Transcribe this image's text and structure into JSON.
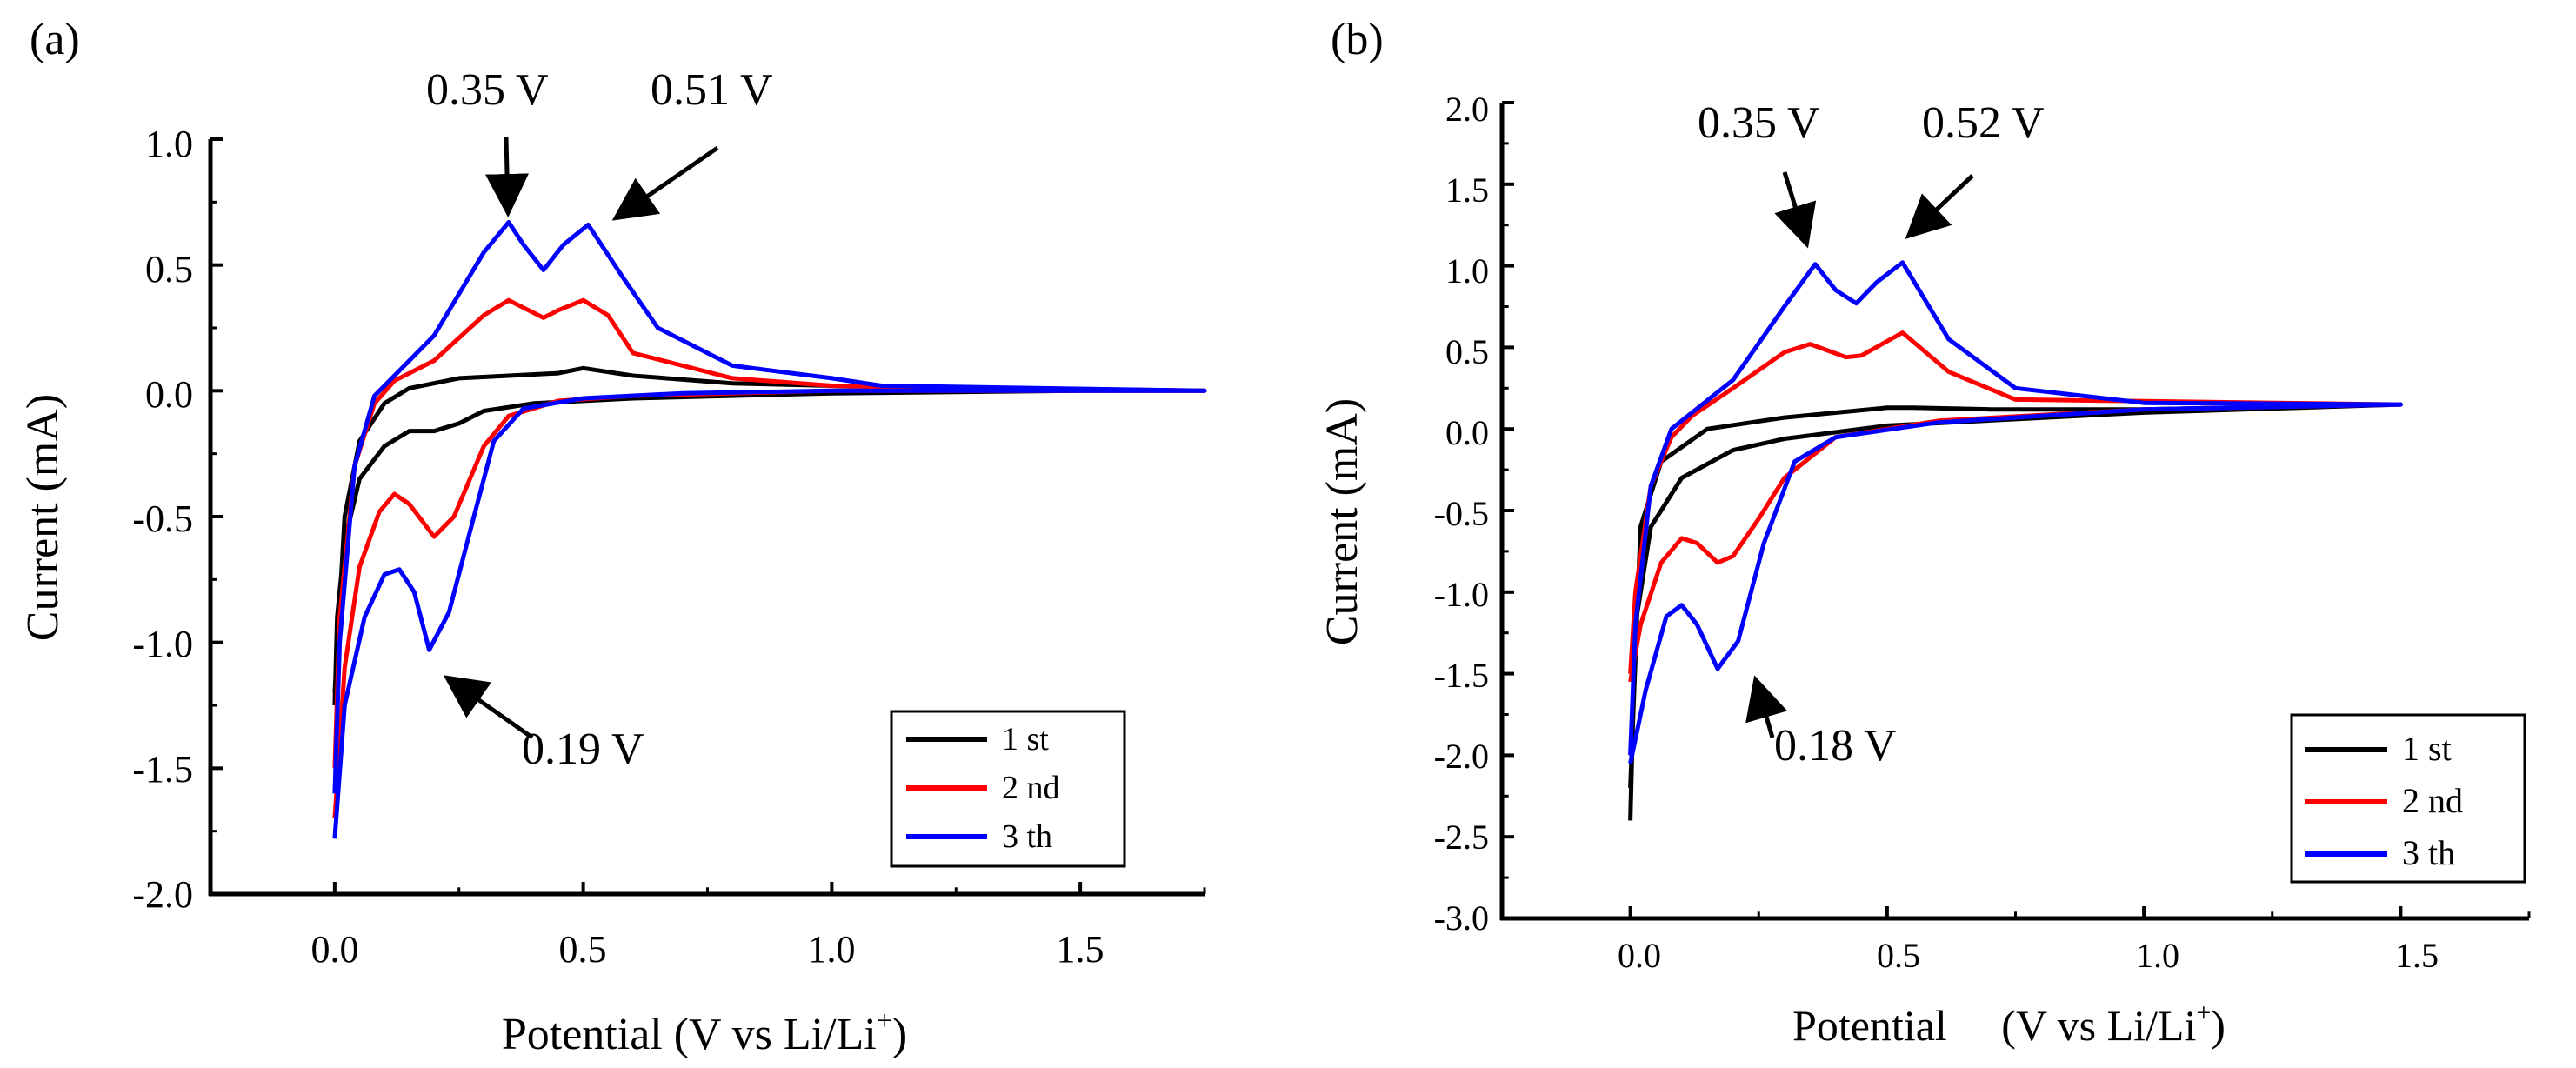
{
  "chart_data": [
    {
      "type": "line",
      "panel_label": "(a)",
      "xlabel": "Potential (V vs Li/Li",
      "xlabel_sup": "+",
      "xlabel_close": ")",
      "ylabel": "Current (mA)",
      "xlim": [
        -0.25,
        1.75
      ],
      "ylim": [
        -2.0,
        1.0
      ],
      "xticks": [
        0.0,
        0.5,
        1.0,
        1.5
      ],
      "xtick_labels": [
        "0.0",
        "0.5",
        "1.0",
        "1.5"
      ],
      "yticks": [
        -2.0,
        -1.5,
        -1.0,
        -0.5,
        0.0,
        0.5,
        1.0
      ],
      "ytick_labels": [
        "-2.0",
        "-1.5",
        "-1.0",
        "-0.5",
        "0.0",
        "0.5",
        "1.0"
      ],
      "legend_position": "bottom-right",
      "series": [
        {
          "name": "1 st",
          "color": "#000000",
          "points": [
            [
              0.0,
              -1.25
            ],
            [
              0.005,
              -0.9
            ],
            [
              0.02,
              -0.6
            ],
            [
              0.05,
              -0.35
            ],
            [
              0.1,
              -0.22
            ],
            [
              0.15,
              -0.16
            ],
            [
              0.2,
              -0.16
            ],
            [
              0.25,
              -0.13
            ],
            [
              0.3,
              -0.08
            ],
            [
              0.4,
              -0.05
            ],
            [
              0.6,
              -0.03
            ],
            [
              1.0,
              -0.01
            ],
            [
              1.5,
              0.0
            ],
            [
              1.75,
              0.0
            ],
            [
              1.5,
              0.0
            ],
            [
              1.0,
              0.02
            ],
            [
              0.8,
              0.03
            ],
            [
              0.6,
              0.06
            ],
            [
              0.5,
              0.09
            ],
            [
              0.45,
              0.07
            ],
            [
              0.35,
              0.06
            ],
            [
              0.25,
              0.05
            ],
            [
              0.15,
              0.01
            ],
            [
              0.1,
              -0.05
            ],
            [
              0.05,
              -0.2
            ],
            [
              0.02,
              -0.5
            ],
            [
              0.0,
              -1.2
            ]
          ]
        },
        {
          "name": "2 nd",
          "color": "#ff0000",
          "points": [
            [
              0.0,
              -1.7
            ],
            [
              0.02,
              -1.1
            ],
            [
              0.05,
              -0.7
            ],
            [
              0.09,
              -0.48
            ],
            [
              0.12,
              -0.41
            ],
            [
              0.15,
              -0.45
            ],
            [
              0.2,
              -0.58
            ],
            [
              0.24,
              -0.5
            ],
            [
              0.3,
              -0.22
            ],
            [
              0.35,
              -0.1
            ],
            [
              0.45,
              -0.04
            ],
            [
              0.6,
              -0.02
            ],
            [
              1.0,
              0.0
            ],
            [
              1.75,
              0.0
            ],
            [
              1.0,
              0.02
            ],
            [
              0.8,
              0.05
            ],
            [
              0.6,
              0.15
            ],
            [
              0.55,
              0.3
            ],
            [
              0.5,
              0.36
            ],
            [
              0.45,
              0.32
            ],
            [
              0.42,
              0.29
            ],
            [
              0.35,
              0.36
            ],
            [
              0.3,
              0.3
            ],
            [
              0.2,
              0.12
            ],
            [
              0.12,
              0.04
            ],
            [
              0.08,
              -0.05
            ],
            [
              0.04,
              -0.3
            ],
            [
              0.01,
              -0.9
            ],
            [
              0.0,
              -1.5
            ]
          ]
        },
        {
          "name": "3 th",
          "color": "#0000ff",
          "points": [
            [
              0.0,
              -1.78
            ],
            [
              0.02,
              -1.25
            ],
            [
              0.06,
              -0.9
            ],
            [
              0.1,
              -0.73
            ],
            [
              0.13,
              -0.71
            ],
            [
              0.16,
              -0.8
            ],
            [
              0.19,
              -1.03
            ],
            [
              0.23,
              -0.88
            ],
            [
              0.28,
              -0.5
            ],
            [
              0.32,
              -0.2
            ],
            [
              0.38,
              -0.07
            ],
            [
              0.5,
              -0.03
            ],
            [
              0.7,
              -0.01
            ],
            [
              1.0,
              0.0
            ],
            [
              1.75,
              0.0
            ],
            [
              1.1,
              0.02
            ],
            [
              1.0,
              0.05
            ],
            [
              0.8,
              0.1
            ],
            [
              0.65,
              0.25
            ],
            [
              0.58,
              0.45
            ],
            [
              0.51,
              0.66
            ],
            [
              0.46,
              0.58
            ],
            [
              0.42,
              0.48
            ],
            [
              0.38,
              0.58
            ],
            [
              0.35,
              0.67
            ],
            [
              0.3,
              0.55
            ],
            [
              0.2,
              0.22
            ],
            [
              0.12,
              0.06
            ],
            [
              0.08,
              -0.02
            ],
            [
              0.04,
              -0.3
            ],
            [
              0.01,
              -1.0
            ],
            [
              0.0,
              -1.6
            ]
          ]
        }
      ],
      "annotations": [
        {
          "text": "0.35 V",
          "x": 0.35,
          "y": 0.7
        },
        {
          "text": "0.51 V",
          "x": 0.51,
          "y": 0.7
        },
        {
          "text": "0.19 V",
          "x": 0.19,
          "y": -1.05
        }
      ]
    },
    {
      "type": "line",
      "panel_label": "(b)",
      "xlabel": "Potential     (V vs Li/Li",
      "xlabel_sup": "+",
      "xlabel_close": ")",
      "ylabel": "Current (mA)",
      "xlim": [
        -0.25,
        1.75
      ],
      "ylim": [
        -3.0,
        2.0
      ],
      "xticks": [
        0.0,
        0.5,
        1.0,
        1.5
      ],
      "xtick_labels": [
        "0.0",
        "0.5",
        "1.0",
        "1.5"
      ],
      "yticks": [
        -3.0,
        -2.5,
        -2.0,
        -1.5,
        -1.0,
        -0.5,
        0.0,
        0.5,
        1.0,
        1.5,
        2.0
      ],
      "ytick_labels": [
        "-3.0",
        "-2.5",
        "-2.0",
        "-1.5",
        "-1.0",
        "-0.5",
        "0.0",
        "0.5",
        "1.0",
        "1.5",
        "2.0"
      ],
      "legend_position": "bottom-right",
      "series": [
        {
          "name": "1 st",
          "color": "#000000",
          "points": [
            [
              0.0,
              -2.4
            ],
            [
              0.01,
              -1.2
            ],
            [
              0.04,
              -0.6
            ],
            [
              0.1,
              -0.3
            ],
            [
              0.2,
              -0.13
            ],
            [
              0.3,
              -0.06
            ],
            [
              0.5,
              0.02
            ],
            [
              1.0,
              0.1
            ],
            [
              1.5,
              0.15
            ],
            [
              1.0,
              0.12
            ],
            [
              0.7,
              0.12
            ],
            [
              0.55,
              0.13
            ],
            [
              0.5,
              0.13
            ],
            [
              0.3,
              0.07
            ],
            [
              0.15,
              0.0
            ],
            [
              0.06,
              -0.2
            ],
            [
              0.02,
              -0.6
            ],
            [
              0.0,
              -2.2
            ]
          ]
        },
        {
          "name": "2 nd",
          "color": "#ff0000",
          "points": [
            [
              0.0,
              -1.55
            ],
            [
              0.02,
              -1.2
            ],
            [
              0.06,
              -0.82
            ],
            [
              0.1,
              -0.67
            ],
            [
              0.13,
              -0.7
            ],
            [
              0.17,
              -0.82
            ],
            [
              0.2,
              -0.78
            ],
            [
              0.25,
              -0.55
            ],
            [
              0.3,
              -0.3
            ],
            [
              0.4,
              -0.05
            ],
            [
              0.6,
              0.05
            ],
            [
              1.0,
              0.12
            ],
            [
              1.5,
              0.15
            ],
            [
              1.0,
              0.17
            ],
            [
              0.75,
              0.18
            ],
            [
              0.62,
              0.35
            ],
            [
              0.53,
              0.59
            ],
            [
              0.45,
              0.45
            ],
            [
              0.42,
              0.44
            ],
            [
              0.35,
              0.52
            ],
            [
              0.3,
              0.47
            ],
            [
              0.2,
              0.25
            ],
            [
              0.12,
              0.08
            ],
            [
              0.08,
              -0.05
            ],
            [
              0.04,
              -0.35
            ],
            [
              0.01,
              -1.0
            ],
            [
              0.0,
              -1.5
            ]
          ]
        },
        {
          "name": "3 th",
          "color": "#0000ff",
          "points": [
            [
              0.0,
              -2.05
            ],
            [
              0.03,
              -1.6
            ],
            [
              0.07,
              -1.15
            ],
            [
              0.1,
              -1.08
            ],
            [
              0.13,
              -1.2
            ],
            [
              0.17,
              -1.47
            ],
            [
              0.21,
              -1.3
            ],
            [
              0.26,
              -0.7
            ],
            [
              0.32,
              -0.2
            ],
            [
              0.4,
              -0.05
            ],
            [
              0.6,
              0.04
            ],
            [
              1.0,
              0.12
            ],
            [
              1.5,
              0.15
            ],
            [
              1.0,
              0.16
            ],
            [
              0.75,
              0.25
            ],
            [
              0.62,
              0.55
            ],
            [
              0.53,
              1.02
            ],
            [
              0.48,
              0.9
            ],
            [
              0.44,
              0.77
            ],
            [
              0.4,
              0.85
            ],
            [
              0.36,
              1.01
            ],
            [
              0.3,
              0.75
            ],
            [
              0.2,
              0.3
            ],
            [
              0.12,
              0.1
            ],
            [
              0.08,
              0.0
            ],
            [
              0.04,
              -0.35
            ],
            [
              0.01,
              -1.2
            ],
            [
              0.0,
              -2.0
            ]
          ]
        }
      ],
      "annotations": [
        {
          "text": "0.35 V",
          "x": 0.35,
          "y": 1.05
        },
        {
          "text": "0.52 V",
          "x": 0.52,
          "y": 1.05
        },
        {
          "text": "0.18 V",
          "x": 0.18,
          "y": -1.5
        }
      ]
    }
  ]
}
